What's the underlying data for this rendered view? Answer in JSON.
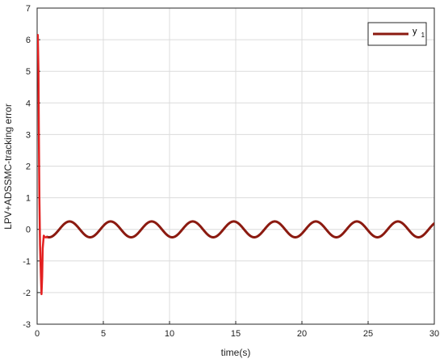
{
  "chart_data": {
    "type": "line",
    "xlabel": "time(s)",
    "ylabel": "LPV+ADSSMC-tracking error",
    "xlim": [
      0,
      30
    ],
    "ylim": [
      -3,
      7
    ],
    "xticks": [
      0,
      5,
      10,
      15,
      20,
      25,
      30
    ],
    "yticks": [
      -3,
      -2,
      -1,
      0,
      1,
      2,
      3,
      4,
      5,
      6,
      7
    ],
    "grid": true,
    "legend_position": "top-right",
    "series": [
      {
        "name": "y",
        "name_subscript": "1",
        "color": "#8b1a10",
        "transient_color": "#e32020",
        "transient": {
          "x": [
            0.0,
            0.05,
            0.1,
            0.13,
            0.17,
            0.22,
            0.28,
            0.33,
            0.38,
            0.42,
            0.5,
            0.6,
            0.75
          ],
          "y": [
            6.0,
            6.15,
            5.0,
            3.0,
            1.0,
            -0.5,
            -1.4,
            -2.05,
            -1.5,
            -0.6,
            -0.2,
            -0.25,
            -0.25
          ]
        },
        "steady": {
          "amplitude": 0.25,
          "period": 3.1,
          "peak_x": 2.45,
          "x_start": 0.75,
          "x_end": 30
        }
      }
    ]
  }
}
